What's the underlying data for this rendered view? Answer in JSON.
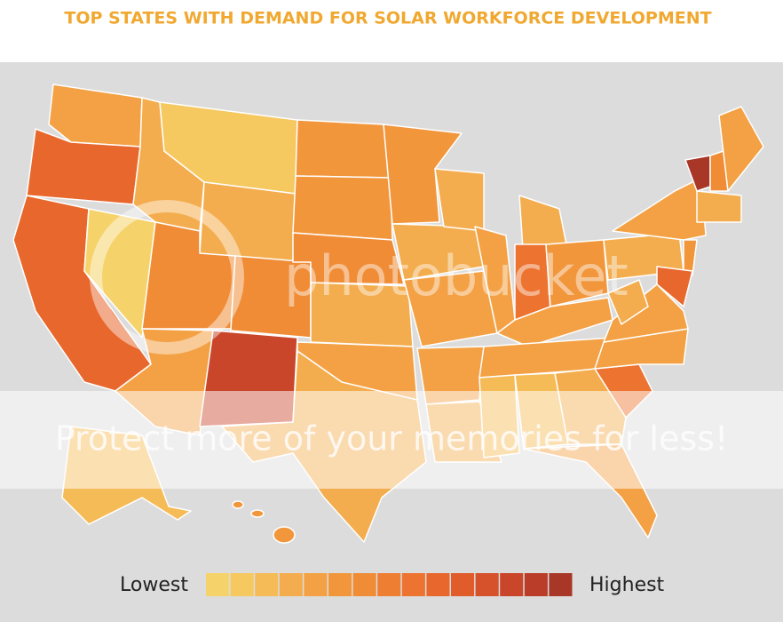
{
  "title": "TOP STATES WITH DEMAND FOR SOLAR WORKFORCE DEVELOPMENT",
  "legend": {
    "low_label": "Lowest",
    "high_label": "Highest",
    "colors": [
      "#f6d36a",
      "#f5c860",
      "#f5bb56",
      "#f4ad4e",
      "#f3a144",
      "#f2963c",
      "#f08c36",
      "#ee7f32",
      "#ec7330",
      "#e8672d",
      "#e05c2b",
      "#d6522a",
      "#c9462a",
      "#b93d28",
      "#a83727"
    ]
  },
  "watermark": {
    "logo": "photobucket",
    "banner": "Protect more of your memories for less!"
  }
}
